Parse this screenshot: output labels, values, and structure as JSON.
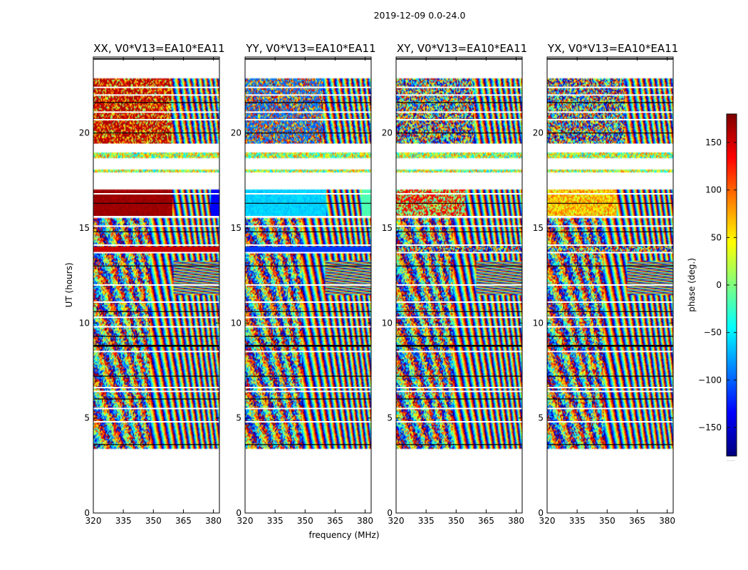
{
  "figure": {
    "suptitle": "2019-12-09 0.0-24.0",
    "xlabel": "frequency (MHz)",
    "ylabel": "UT (hours)",
    "colorbar_label": "phase (deg.)",
    "colorbar_note": "....."
  },
  "chart_data": {
    "type": "heatmap",
    "panels": [
      {
        "title": "XX, V0*V13=EA10*EA11",
        "mode": "xx"
      },
      {
        "title": "YY, V0*V13=EA10*EA11",
        "mode": "yy"
      },
      {
        "title": "XY, V0*V13=EA10*EA11",
        "mode": "xy"
      },
      {
        "title": "YX, V0*V13=EA10*EA11",
        "mode": "yx"
      }
    ],
    "xlim": [
      320,
      383
    ],
    "xticks": [
      320,
      335,
      350,
      365,
      380
    ],
    "xtick_labels": [
      "320",
      "335",
      "350",
      "365",
      "380"
    ],
    "ylim": [
      0,
      24
    ],
    "yticks": [
      0,
      5,
      10,
      15,
      20
    ],
    "ytick_labels": [
      "0",
      "5",
      "10",
      "15",
      "20"
    ],
    "zlim": [
      -180,
      180
    ],
    "colorbar_ticks": [
      150,
      100,
      50,
      0,
      -50,
      -100,
      -150
    ],
    "colorbar_tick_labels": [
      "150",
      "100",
      "50",
      "0",
      "−50",
      "−100",
      "−150"
    ],
    "colormap": "jet",
    "data_blocks_ut": [
      {
        "start": 3.4,
        "end": 8.8,
        "kind": "fringes"
      },
      {
        "start": 8.8,
        "end": 13.7,
        "kind": "fringes"
      },
      {
        "start": 13.7,
        "end": 14.0,
        "kind": "edge"
      },
      {
        "start": 14.0,
        "end": 15.5,
        "kind": "fringes"
      },
      {
        "start": 15.6,
        "end": 17.0,
        "kind": "band"
      },
      {
        "start": 17.9,
        "end": 18.1,
        "kind": "thin"
      },
      {
        "start": 18.7,
        "end": 19.0,
        "kind": "thin"
      },
      {
        "start": 19.4,
        "end": 22.9,
        "kind": "noisy"
      }
    ],
    "gap_lines_ut": [
      3.6,
      4.8,
      5.5,
      6.0,
      6.4,
      6.6,
      7.2,
      8.5,
      8.8,
      9.3,
      9.8,
      10.3,
      10.6,
      11.1,
      12.0,
      13.0,
      13.7,
      14.1,
      14.8,
      15.1,
      15.6,
      16.3,
      16.8,
      19.4,
      20.0,
      20.7,
      21.1,
      21.6,
      22.0,
      22.4
    ],
    "feature_ut": 12.4,
    "feature_freq_mhz": [
      360,
      383
    ]
  }
}
